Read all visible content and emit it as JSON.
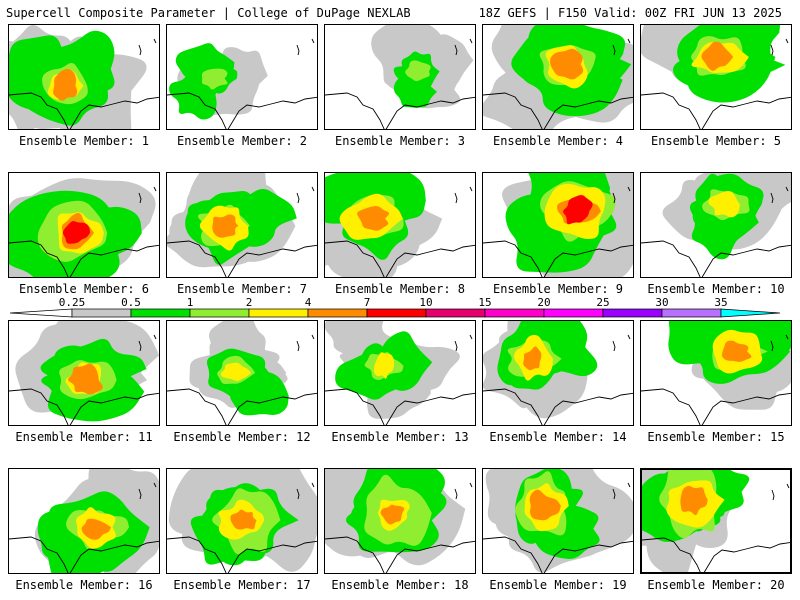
{
  "header": {
    "title": "Supercell Composite Parameter | College of DuPage NEXLAB",
    "run_info": "18Z GEFS | F150 Valid: 00Z FRI JUN 13 2025"
  },
  "colorbar": {
    "ticks": [
      "0.25",
      "0.5",
      "1",
      "2",
      "4",
      "7",
      "10",
      "15",
      "20",
      "25",
      "30",
      "35"
    ],
    "colors": [
      "#c8c8c8",
      "#00e000",
      "#90ee30",
      "#fff000",
      "#ff8c00",
      "#ff0000",
      "#e6006e",
      "#ff00c8",
      "#ff00ff",
      "#9a00ff",
      "#b870ff",
      "#00ffff"
    ]
  },
  "panels": [
    {
      "label": "Ensemble Member: 1",
      "intensity": 0.75
    },
    {
      "label": "Ensemble Member: 2",
      "intensity": 0.35
    },
    {
      "label": "Ensemble Member: 3",
      "intensity": 0.35
    },
    {
      "label": "Ensemble Member: 4",
      "intensity": 0.85
    },
    {
      "label": "Ensemble Member: 5",
      "intensity": 0.8
    },
    {
      "label": "Ensemble Member: 6",
      "intensity": 0.9
    },
    {
      "label": "Ensemble Member: 7",
      "intensity": 0.7
    },
    {
      "label": "Ensemble Member: 8",
      "intensity": 0.85
    },
    {
      "label": "Ensemble Member: 9",
      "intensity": 0.95
    },
    {
      "label": "Ensemble Member: 10",
      "intensity": 0.6
    },
    {
      "label": "Ensemble Member: 11",
      "intensity": 0.8
    },
    {
      "label": "Ensemble Member: 12",
      "intensity": 0.5
    },
    {
      "label": "Ensemble Member: 13",
      "intensity": 0.45
    },
    {
      "label": "Ensemble Member: 14",
      "intensity": 0.65
    },
    {
      "label": "Ensemble Member: 15",
      "intensity": 0.7
    },
    {
      "label": "Ensemble Member: 16",
      "intensity": 0.75
    },
    {
      "label": "Ensemble Member: 17",
      "intensity": 0.8
    },
    {
      "label": "Ensemble Member: 18",
      "intensity": 0.85
    },
    {
      "label": "Ensemble Member: 19",
      "intensity": 0.75
    },
    {
      "label": "Ensemble Member: 20",
      "intensity": 0.85
    }
  ]
}
